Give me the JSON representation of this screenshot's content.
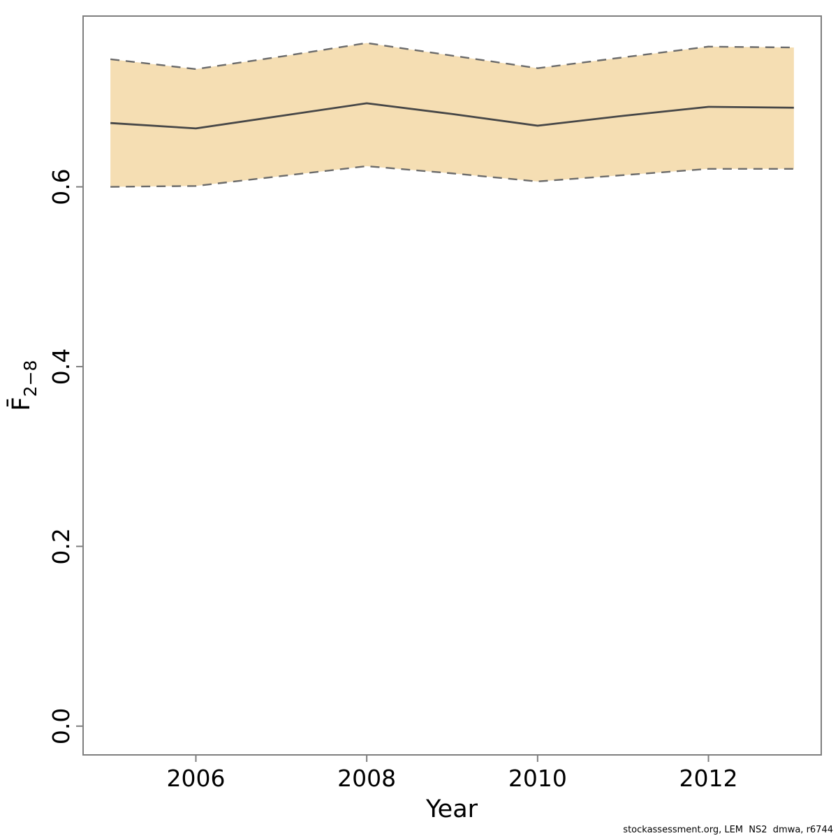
{
  "figure": {
    "xlabel": "Year",
    "ylabel_main": "F̄",
    "ylabel_sub": "2−8",
    "footer": "stockassessment.org, LEM  NS2  dmwa, r6744"
  },
  "chart_data": {
    "type": "line",
    "title": "",
    "xlabel": "Year",
    "ylabel": "Fbar(2-8)",
    "x": [
      2005,
      2006,
      2007,
      2008,
      2009,
      2010,
      2011,
      2012,
      2013
    ],
    "series": [
      {
        "name": "Fbar(2-8) estimate",
        "role": "estimate",
        "values": [
          0.671,
          0.665,
          0.679,
          0.693,
          0.681,
          0.668,
          0.679,
          0.689,
          0.688
        ]
      },
      {
        "name": "95% CI upper",
        "role": "ci_upper",
        "values": [
          0.742,
          0.731,
          0.745,
          0.76,
          0.746,
          0.732,
          0.744,
          0.756,
          0.755
        ]
      },
      {
        "name": "95% CI lower",
        "role": "ci_lower",
        "values": [
          0.6,
          0.601,
          0.612,
          0.623,
          0.615,
          0.606,
          0.613,
          0.62,
          0.62
        ]
      }
    ],
    "x_ticks": [
      2006,
      2008,
      2010,
      2012
    ],
    "x_tick_labels": [
      "2006",
      "2008",
      "2010",
      "2012"
    ],
    "y_ticks": [
      0.0,
      0.2,
      0.4,
      0.6
    ],
    "y_tick_labels": [
      "0.0",
      "0.2",
      "0.4",
      "0.6"
    ],
    "xlim": [
      2004.68,
      2013.32
    ],
    "ylim": [
      -0.032,
      0.79
    ],
    "grid": false,
    "legend": "none",
    "colors": {
      "band_fill": "#F5DEB3",
      "band_edge": "#6B6B6B",
      "estimate_line": "#474747",
      "axis": "#7E7E7E",
      "text": "#000000"
    }
  }
}
